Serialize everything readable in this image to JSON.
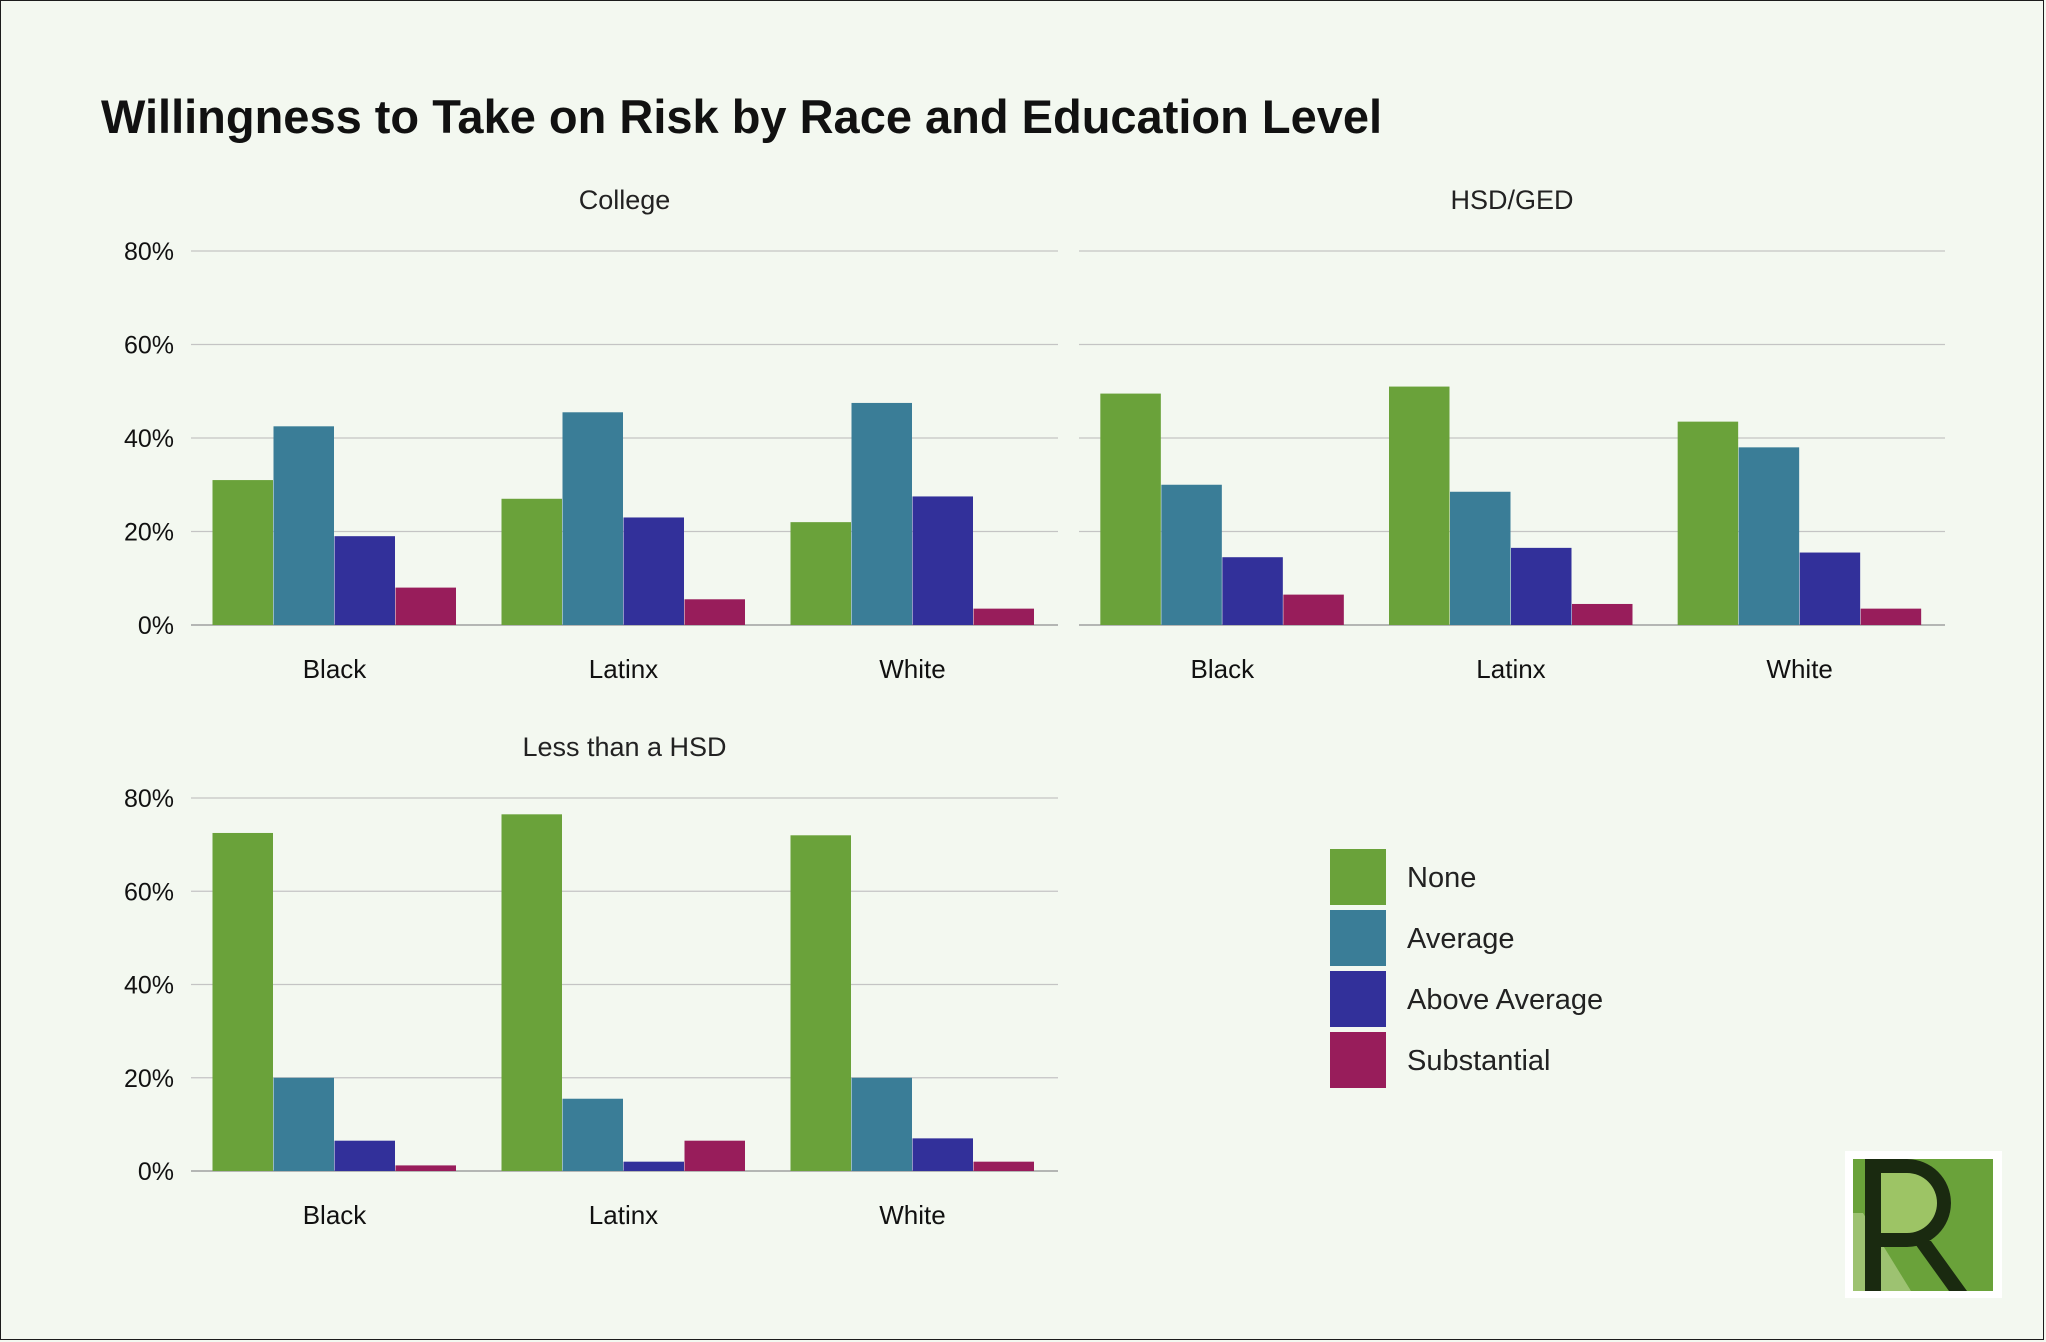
{
  "chart_data": {
    "type": "bar",
    "title": "Willingness to Take on Risk by Race and Education Level",
    "categories": [
      "Black",
      "Latinx",
      "White"
    ],
    "y_ticks": [
      "80%",
      "60%",
      "40%",
      "20%",
      "0%"
    ],
    "ylim": [
      0,
      80
    ],
    "grid": true,
    "legend_position": "right",
    "legend": [
      "None",
      "Average",
      "Above Average",
      "Substantial"
    ],
    "colors": [
      "#6aa23a",
      "#3a7d97",
      "#32309a",
      "#981d5b"
    ],
    "panels": [
      {
        "title": "College",
        "series": [
          {
            "name": "None",
            "values": [
              31,
              27,
              22
            ]
          },
          {
            "name": "Average",
            "values": [
              42.5,
              45.5,
              47.5
            ]
          },
          {
            "name": "Above Average",
            "values": [
              19,
              23,
              27.5
            ]
          },
          {
            "name": "Substantial",
            "values": [
              8,
              5.5,
              3.5
            ]
          }
        ]
      },
      {
        "title": "HSD/GED",
        "series": [
          {
            "name": "None",
            "values": [
              49.5,
              51,
              43.5
            ]
          },
          {
            "name": "Average",
            "values": [
              30,
              28.5,
              38
            ]
          },
          {
            "name": "Above Average",
            "values": [
              14.5,
              16.5,
              15.5
            ]
          },
          {
            "name": "Substantial",
            "values": [
              6.5,
              4.5,
              3.5
            ]
          }
        ]
      },
      {
        "title": "Less than a HSD",
        "series": [
          {
            "name": "None",
            "values": [
              72.5,
              76.5,
              72
            ]
          },
          {
            "name": "Average",
            "values": [
              20,
              15.5,
              20
            ]
          },
          {
            "name": "Above Average",
            "values": [
              6.5,
              2,
              7
            ]
          },
          {
            "name": "Substantial",
            "values": [
              1.2,
              6.5,
              2
            ]
          }
        ]
      }
    ]
  },
  "logo": {
    "letter": "R",
    "colors": [
      "#6aa23a",
      "#a3c86a",
      "#1a2a10"
    ]
  }
}
